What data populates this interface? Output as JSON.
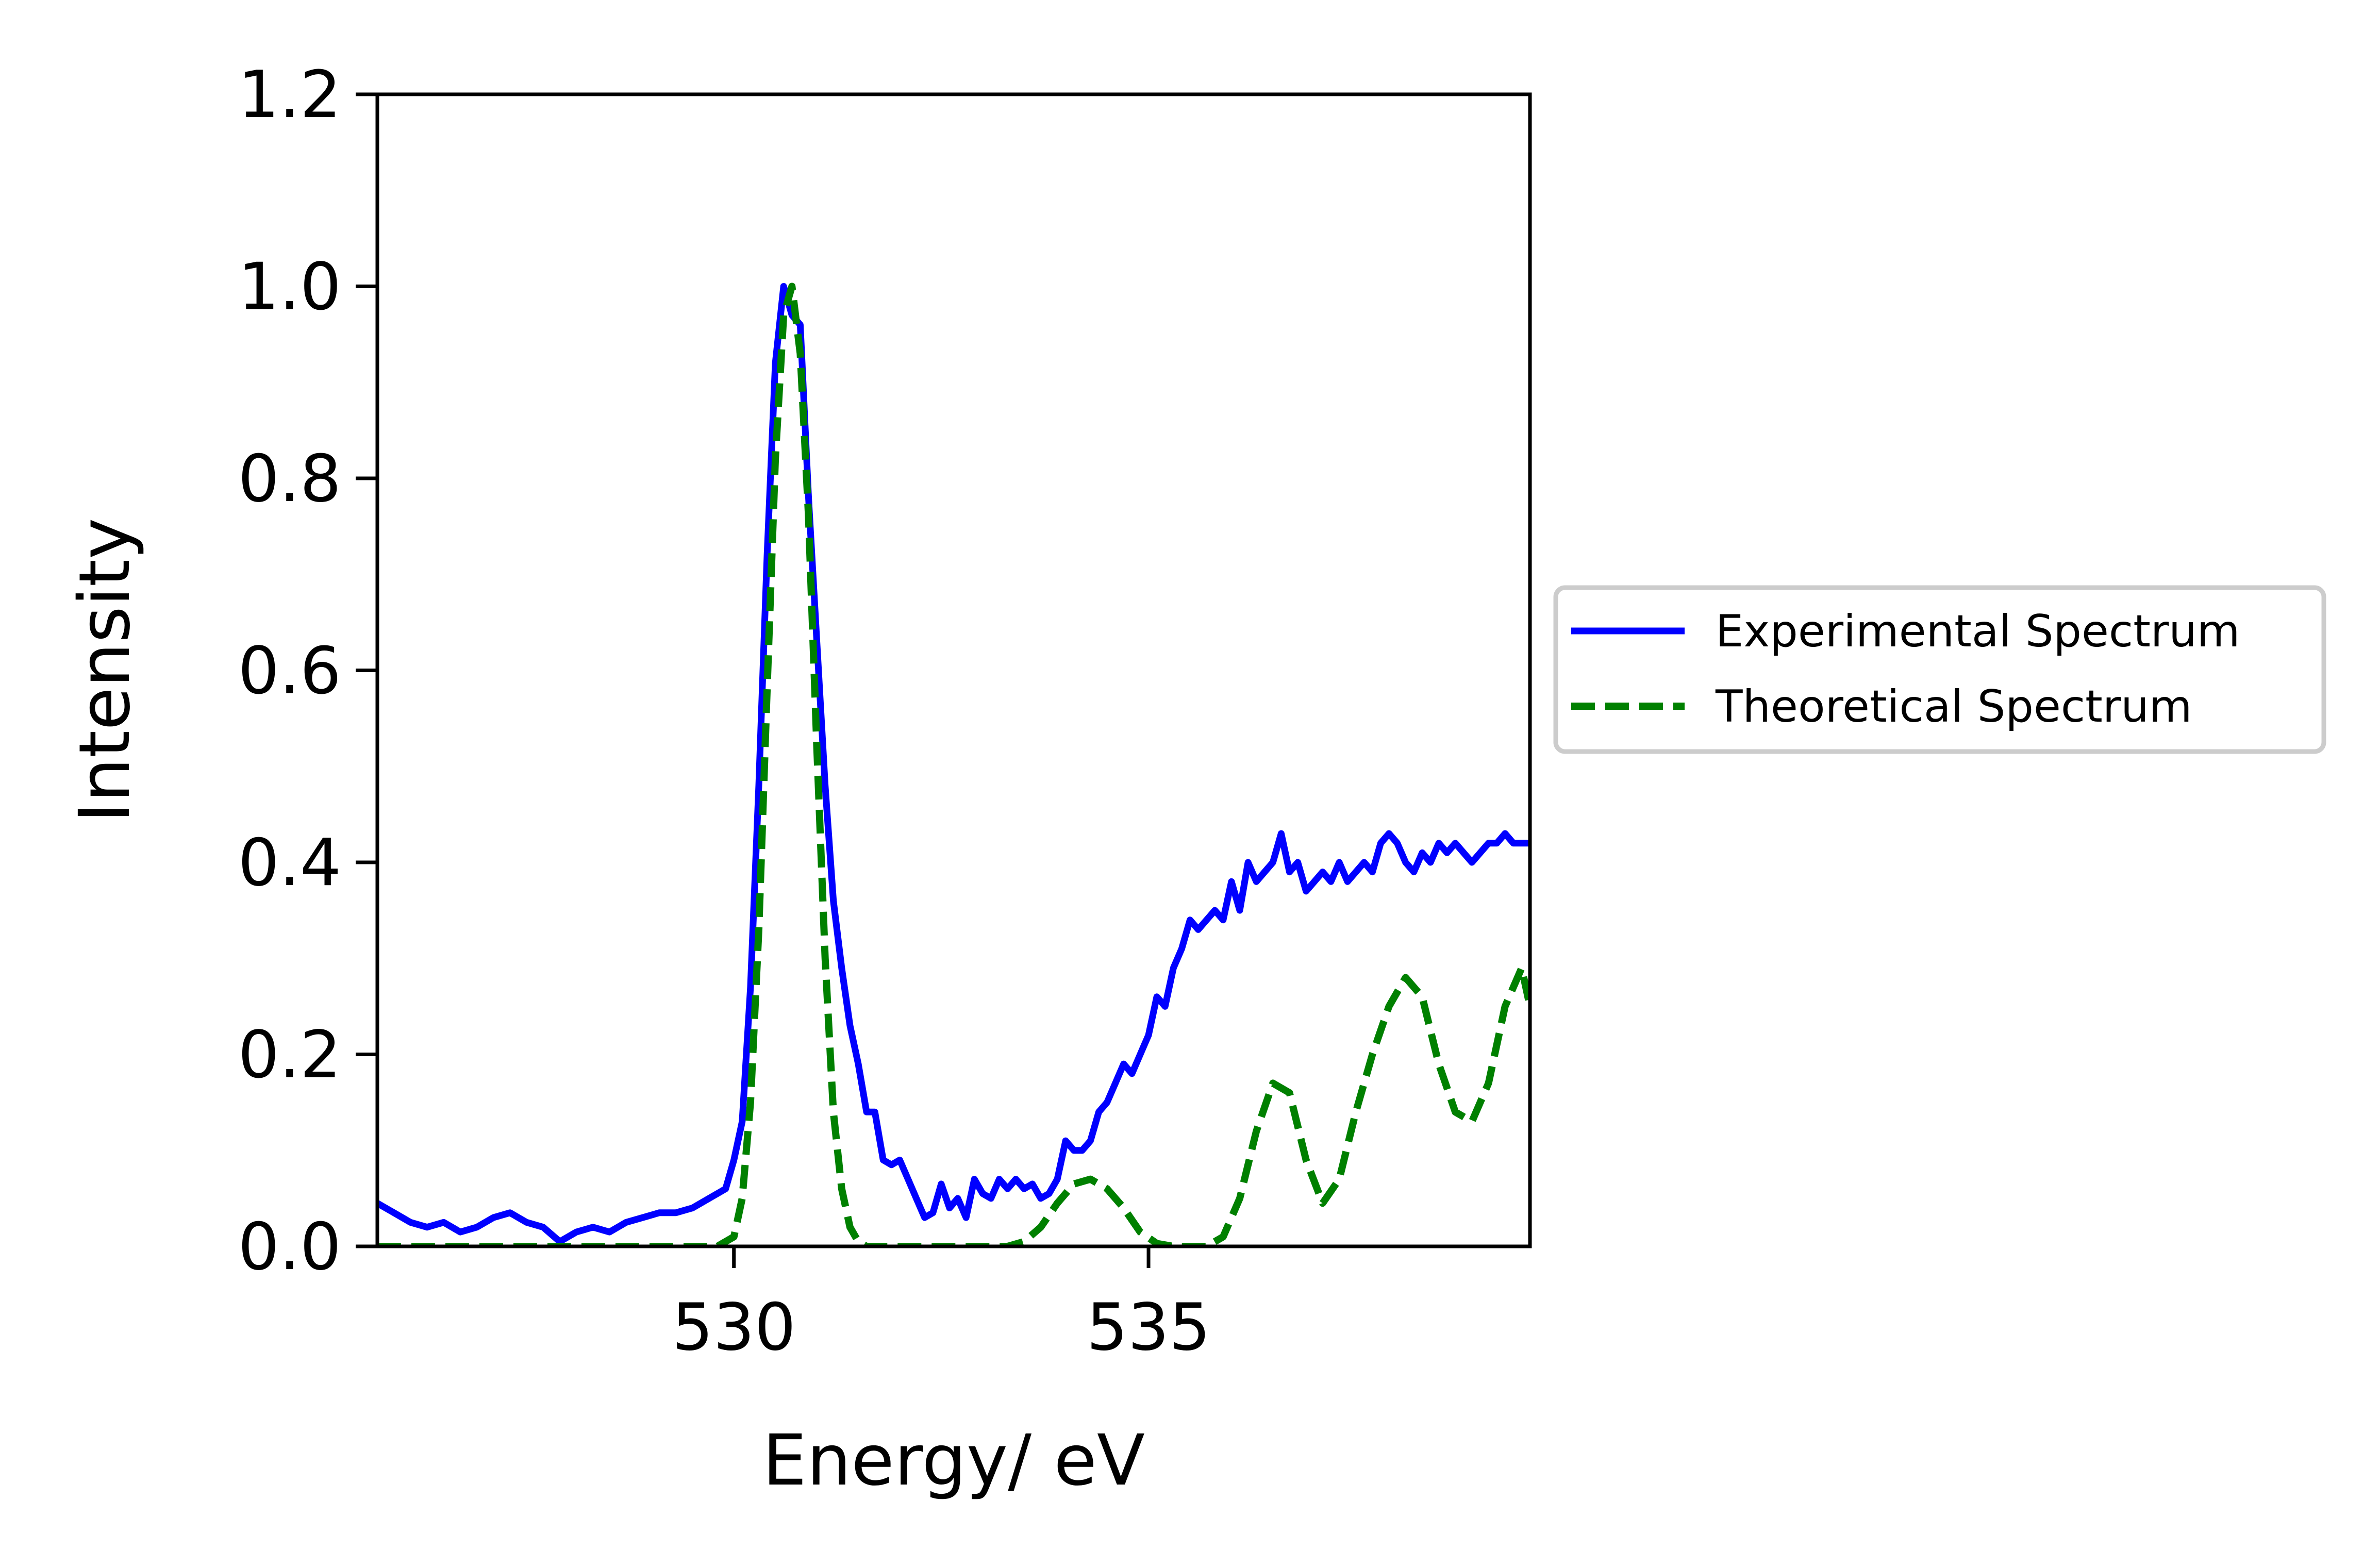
{
  "chart_data": {
    "type": "line",
    "xlabel": "Energy/ eV",
    "ylabel": "Intensity",
    "xlim": [
      525.7,
      539.6
    ],
    "ylim": [
      0,
      1.2
    ],
    "xticks": [
      530,
      535
    ],
    "xtick_labels": [
      "530",
      "535"
    ],
    "yticks": [
      0,
      0.2,
      0.4,
      0.6,
      0.8,
      1.0,
      1.2
    ],
    "ytick_labels": [
      "0.0",
      "0.2",
      "0.4",
      "0.6",
      "0.8",
      "1.0",
      "1.2"
    ],
    "grid": false,
    "legend_position": "right-outside",
    "series": [
      {
        "name": "Experimental Spectrum",
        "color": "#0000ff",
        "style": "solid",
        "x": [
          525.7,
          525.9,
          526.1,
          526.3,
          526.5,
          526.7,
          526.9,
          527.1,
          527.3,
          527.5,
          527.7,
          527.9,
          528.1,
          528.3,
          528.5,
          528.7,
          528.9,
          529.1,
          529.3,
          529.5,
          529.7,
          529.9,
          530.0,
          530.1,
          530.2,
          530.3,
          530.4,
          530.5,
          530.6,
          530.7,
          530.8,
          530.9,
          531.0,
          531.1,
          531.2,
          531.3,
          531.4,
          531.5,
          531.6,
          531.7,
          531.8,
          531.9,
          532.0,
          532.1,
          532.2,
          532.3,
          532.4,
          532.5,
          532.6,
          532.7,
          532.8,
          532.9,
          533.0,
          533.1,
          533.2,
          533.3,
          533.4,
          533.5,
          533.6,
          533.7,
          533.8,
          533.9,
          534.0,
          534.1,
          534.2,
          534.3,
          534.4,
          534.5,
          534.6,
          534.7,
          534.8,
          534.9,
          535.0,
          535.1,
          535.2,
          535.3,
          535.4,
          535.5,
          535.6,
          535.7,
          535.8,
          535.9,
          536.0,
          536.1,
          536.2,
          536.3,
          536.4,
          536.5,
          536.6,
          536.7,
          536.8,
          536.9,
          537.0,
          537.1,
          537.2,
          537.3,
          537.4,
          537.5,
          537.6,
          537.7,
          537.8,
          537.9,
          538.0,
          538.1,
          538.2,
          538.3,
          538.4,
          538.5,
          538.6,
          538.7,
          538.8,
          538.9,
          539.0,
          539.1,
          539.2,
          539.3,
          539.4,
          539.5,
          539.6
        ],
        "y": [
          0.045,
          0.035,
          0.025,
          0.02,
          0.025,
          0.015,
          0.02,
          0.03,
          0.035,
          0.025,
          0.02,
          0.005,
          0.015,
          0.02,
          0.015,
          0.025,
          0.03,
          0.035,
          0.035,
          0.04,
          0.05,
          0.06,
          0.09,
          0.13,
          0.27,
          0.48,
          0.72,
          0.92,
          1.0,
          0.97,
          0.96,
          0.78,
          0.63,
          0.48,
          0.36,
          0.29,
          0.23,
          0.19,
          0.14,
          0.14,
          0.09,
          0.085,
          0.09,
          0.07,
          0.05,
          0.03,
          0.035,
          0.065,
          0.04,
          0.05,
          0.03,
          0.07,
          0.055,
          0.05,
          0.07,
          0.06,
          0.07,
          0.06,
          0.065,
          0.05,
          0.055,
          0.07,
          0.11,
          0.1,
          0.1,
          0.11,
          0.14,
          0.15,
          0.17,
          0.19,
          0.18,
          0.2,
          0.22,
          0.26,
          0.25,
          0.29,
          0.31,
          0.34,
          0.33,
          0.34,
          0.35,
          0.34,
          0.38,
          0.35,
          0.4,
          0.38,
          0.39,
          0.4,
          0.43,
          0.39,
          0.4,
          0.37,
          0.38,
          0.39,
          0.38,
          0.4,
          0.38,
          0.39,
          0.4,
          0.39,
          0.42,
          0.43,
          0.42,
          0.4,
          0.39,
          0.41,
          0.4,
          0.42,
          0.41,
          0.42,
          0.41,
          0.4,
          0.41,
          0.42,
          0.42,
          0.43,
          0.42,
          0.42,
          0.42
        ],
        "note_ignore": ""
      },
      {
        "name": "Theoretical Spectrum",
        "color": "#008000",
        "style": "dashed",
        "x": [
          525.7,
          526.0,
          526.5,
          527.0,
          527.5,
          528.0,
          528.5,
          529.0,
          529.5,
          529.8,
          530.0,
          530.1,
          530.2,
          530.3,
          530.4,
          530.5,
          530.6,
          530.7,
          530.8,
          530.9,
          531.0,
          531.1,
          531.2,
          531.3,
          531.4,
          531.5,
          531.6,
          531.7,
          531.8,
          532.0,
          532.5,
          533.0,
          533.3,
          533.5,
          533.7,
          533.9,
          534.1,
          534.3,
          534.5,
          534.7,
          534.9,
          535.1,
          535.3,
          535.5,
          535.7,
          535.9,
          536.1,
          536.3,
          536.5,
          536.7,
          536.9,
          537.1,
          537.3,
          537.5,
          537.7,
          537.9,
          538.1,
          538.3,
          538.5,
          538.7,
          538.9,
          539.1,
          539.3,
          539.5,
          539.6
        ],
        "y": [
          0,
          0,
          0,
          0,
          0,
          0,
          0,
          0,
          0,
          0,
          0.01,
          0.05,
          0.15,
          0.33,
          0.58,
          0.82,
          0.97,
          1.0,
          0.93,
          0.76,
          0.52,
          0.3,
          0.14,
          0.06,
          0.02,
          0.005,
          0,
          0,
          0,
          0,
          0,
          0,
          0,
          0.005,
          0.02,
          0.045,
          0.065,
          0.07,
          0.06,
          0.04,
          0.015,
          0.003,
          0,
          0,
          0,
          0.01,
          0.05,
          0.12,
          0.17,
          0.16,
          0.09,
          0.045,
          0.07,
          0.14,
          0.2,
          0.25,
          0.28,
          0.26,
          0.19,
          0.14,
          0.13,
          0.17,
          0.25,
          0.29,
          0.25
        ]
      }
    ]
  }
}
